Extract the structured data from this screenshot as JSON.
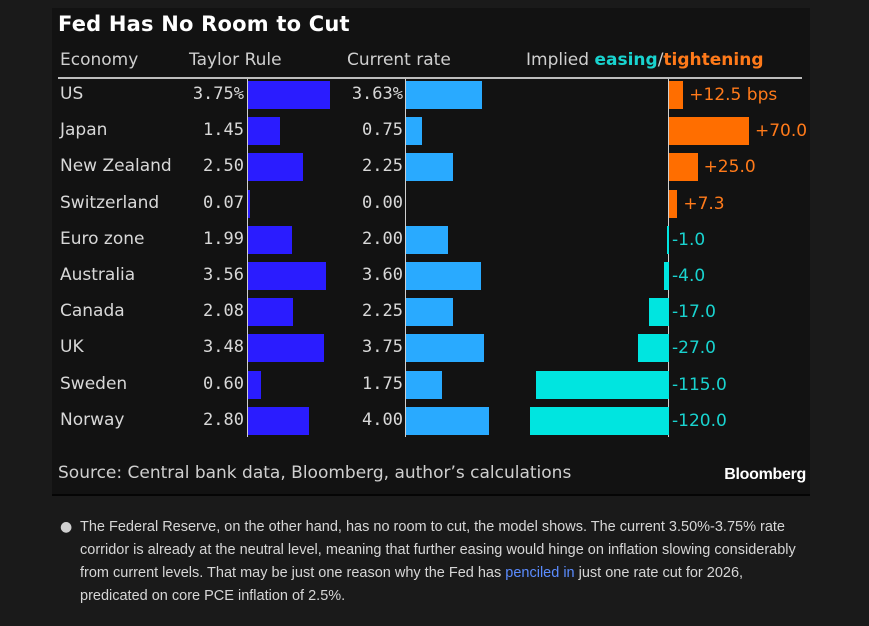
{
  "chart_data": {
    "type": "table",
    "title": "Fed Has No Room to Cut",
    "columns": [
      "Economy",
      "Taylor Rule",
      "Current rate",
      "Implied easing/tightening"
    ],
    "implied_header": {
      "prefix": "Implied ",
      "easing": "easing",
      "slash": "/",
      "tightening": "tightening"
    },
    "categories": [
      "US",
      "Japan",
      "New Zealand",
      "Switzerland",
      "Euro zone",
      "Australia",
      "Canada",
      "UK",
      "Sweden",
      "Norway"
    ],
    "series": [
      {
        "name": "Taylor Rule",
        "unit": "%",
        "values": [
          3.75,
          1.45,
          2.5,
          0.07,
          1.99,
          3.56,
          2.08,
          3.48,
          0.6,
          2.8
        ],
        "labels": [
          "3.75%",
          "1.45",
          "2.50",
          "0.07",
          "1.99",
          "3.56",
          "2.08",
          "3.48",
          "0.60",
          "2.80"
        ]
      },
      {
        "name": "Current rate",
        "unit": "%",
        "values": [
          3.63,
          0.75,
          2.25,
          0.0,
          2.0,
          3.6,
          2.25,
          3.75,
          1.75,
          4.0
        ],
        "labels": [
          "3.63%",
          "0.75",
          "2.25",
          "0.00",
          "2.00",
          "3.60",
          "2.25",
          "3.75",
          "1.75",
          "4.00"
        ]
      },
      {
        "name": "Implied easing/tightening",
        "unit": "bps",
        "values": [
          12.5,
          70.0,
          25.0,
          7.3,
          -1.0,
          -4.0,
          -17.0,
          -27.0,
          -115.0,
          -120.0
        ],
        "labels": [
          "+12.5 bps",
          "+70.0",
          "+25.0",
          "+7.3",
          "-1.0",
          "-4.0",
          "-17.0",
          "-27.0",
          "-115.0",
          "-120.0"
        ]
      }
    ],
    "source": "Source: Central bank data, Bloomberg, author’s calculations",
    "brand": "Bloomberg",
    "colors": {
      "taylor": "#2a1cff",
      "current": "#29aaff",
      "tightening": "#ff6e00",
      "easing": "#00e5e0",
      "tightening_text": "#ff7a1a",
      "easing_text": "#19d3cf"
    }
  },
  "article": {
    "para_before_link": "The Federal Reserve, on the other hand, has no room to cut, the model shows. The current 3.50%-3.75% rate corridor is already at the neutral level, meaning that further easing would hinge on inflation slowing considerably from current levels. That may be just one reason why the Fed has ",
    "link_text": "penciled in",
    "para_after_link": " just one rate cut for 2026, predicated on core PCE inflation of 2.5%."
  }
}
